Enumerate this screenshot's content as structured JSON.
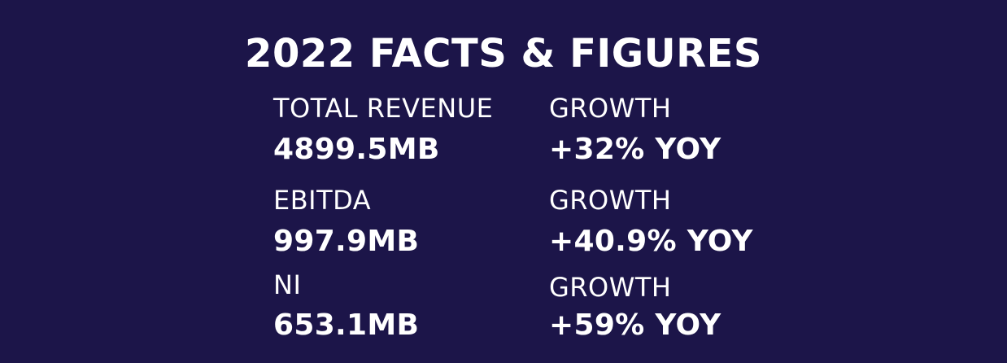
{
  "title": "2022 FACTS & FIGURES",
  "rows": [
    {
      "metric_label": "TOTAL REVENUE",
      "metric_value": "4899.5MB",
      "growth_label": "GROWTH",
      "growth_value": "+32% YOY"
    },
    {
      "metric_label": "EBITDA",
      "metric_value": "997.9MB",
      "growth_label": "GROWTH",
      "growth_value": "+40.9% YOY"
    },
    {
      "metric_label": "NI",
      "metric_value": "653.1MB",
      "growth_label": "GROWTH",
      "growth_value": "+59% YOY"
    }
  ],
  "colors": {
    "background": "#1c1549",
    "text": "#ffffff"
  }
}
